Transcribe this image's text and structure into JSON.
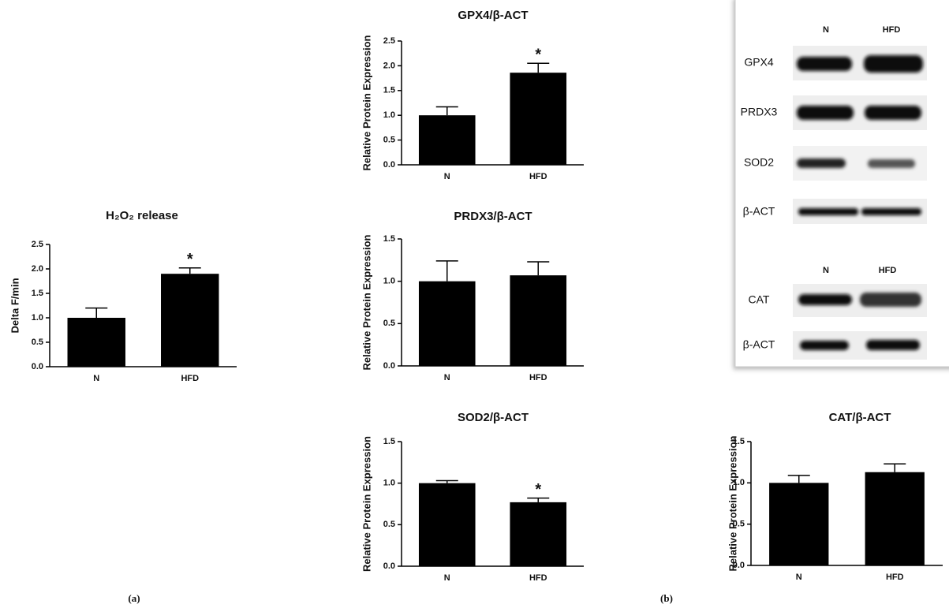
{
  "chart_data": [
    {
      "type": "bar",
      "title": "H₂O₂ release",
      "ylabel": "Delta F/min",
      "categories": [
        "N",
        "HFD"
      ],
      "values": [
        1.0,
        1.9
      ],
      "errors": [
        0.2,
        0.12
      ],
      "significance": [
        null,
        "*"
      ],
      "color": "#000000",
      "ylim": [
        0,
        2.5
      ],
      "yticks": [
        {
          "value": 0,
          "label": "0.0"
        },
        0.5,
        {
          "value": 1,
          "label": "1.0"
        },
        1.5,
        {
          "value": 2,
          "label": "2.0"
        },
        2.5
      ]
    },
    {
      "type": "bar",
      "title": "GPX4/β-ACT",
      "ylabel": "Relative Protein Expression",
      "categories": [
        "N",
        "HFD"
      ],
      "values": [
        1.0,
        1.86
      ],
      "errors": [
        0.17,
        0.19
      ],
      "significance": [
        null,
        "*"
      ],
      "color": "#000000",
      "ylim": [
        0,
        2.5
      ],
      "yticks": [
        {
          "value": 0,
          "label": "0.0"
        },
        0.5,
        {
          "value": 1,
          "label": "1.0"
        },
        1.5,
        {
          "value": 2,
          "label": "2.0"
        },
        2.5
      ]
    },
    {
      "type": "bar",
      "title": "PRDX3/β-ACT",
      "ylabel": "Relative Protein Expression",
      "categories": [
        "N",
        "HFD"
      ],
      "values": [
        1.0,
        1.07
      ],
      "errors": [
        0.24,
        0.16
      ],
      "color": "#000000",
      "ylim": [
        0,
        1.5
      ],
      "yticks": [
        {
          "value": 0,
          "label": "0.0"
        },
        0.5,
        {
          "value": 1,
          "label": "1.0"
        },
        1.5
      ]
    },
    {
      "type": "bar",
      "title": "SOD2/β-ACT",
      "ylabel": "Relative Protein Expression",
      "categories": [
        "N",
        "HFD"
      ],
      "values": [
        1.0,
        0.77
      ],
      "errors": [
        0.03,
        0.05
      ],
      "significance": [
        null,
        "*"
      ],
      "color": "#000000",
      "ylim": [
        0,
        1.5
      ],
      "yticks": [
        {
          "value": 0,
          "label": "0.0"
        },
        0.5,
        {
          "value": 1,
          "label": "1.0"
        },
        1.5
      ]
    },
    {
      "type": "bar",
      "title": "CAT/β-ACT",
      "ylabel": "Relative Protein Expression",
      "categories": [
        "N",
        "HFD"
      ],
      "values": [
        1.0,
        1.13
      ],
      "errors": [
        0.09,
        0.1
      ],
      "color": "#000000",
      "ylim": [
        0,
        1.5
      ],
      "yticks": [
        {
          "value": 0,
          "label": "0.0"
        },
        0.5,
        {
          "value": 1,
          "label": "1.0"
        },
        1.5
      ]
    }
  ],
  "blot": {
    "upper": {
      "columns": [
        "N",
        "HFD"
      ],
      "rows": [
        "GPX4",
        "PRDX3",
        "SOD2",
        "β-ACT"
      ]
    },
    "lower": {
      "columns": [
        "N",
        "HFD"
      ],
      "rows": [
        "CAT",
        "β-ACT"
      ]
    }
  },
  "panel_labels": [
    "(a)",
    "(b)"
  ]
}
